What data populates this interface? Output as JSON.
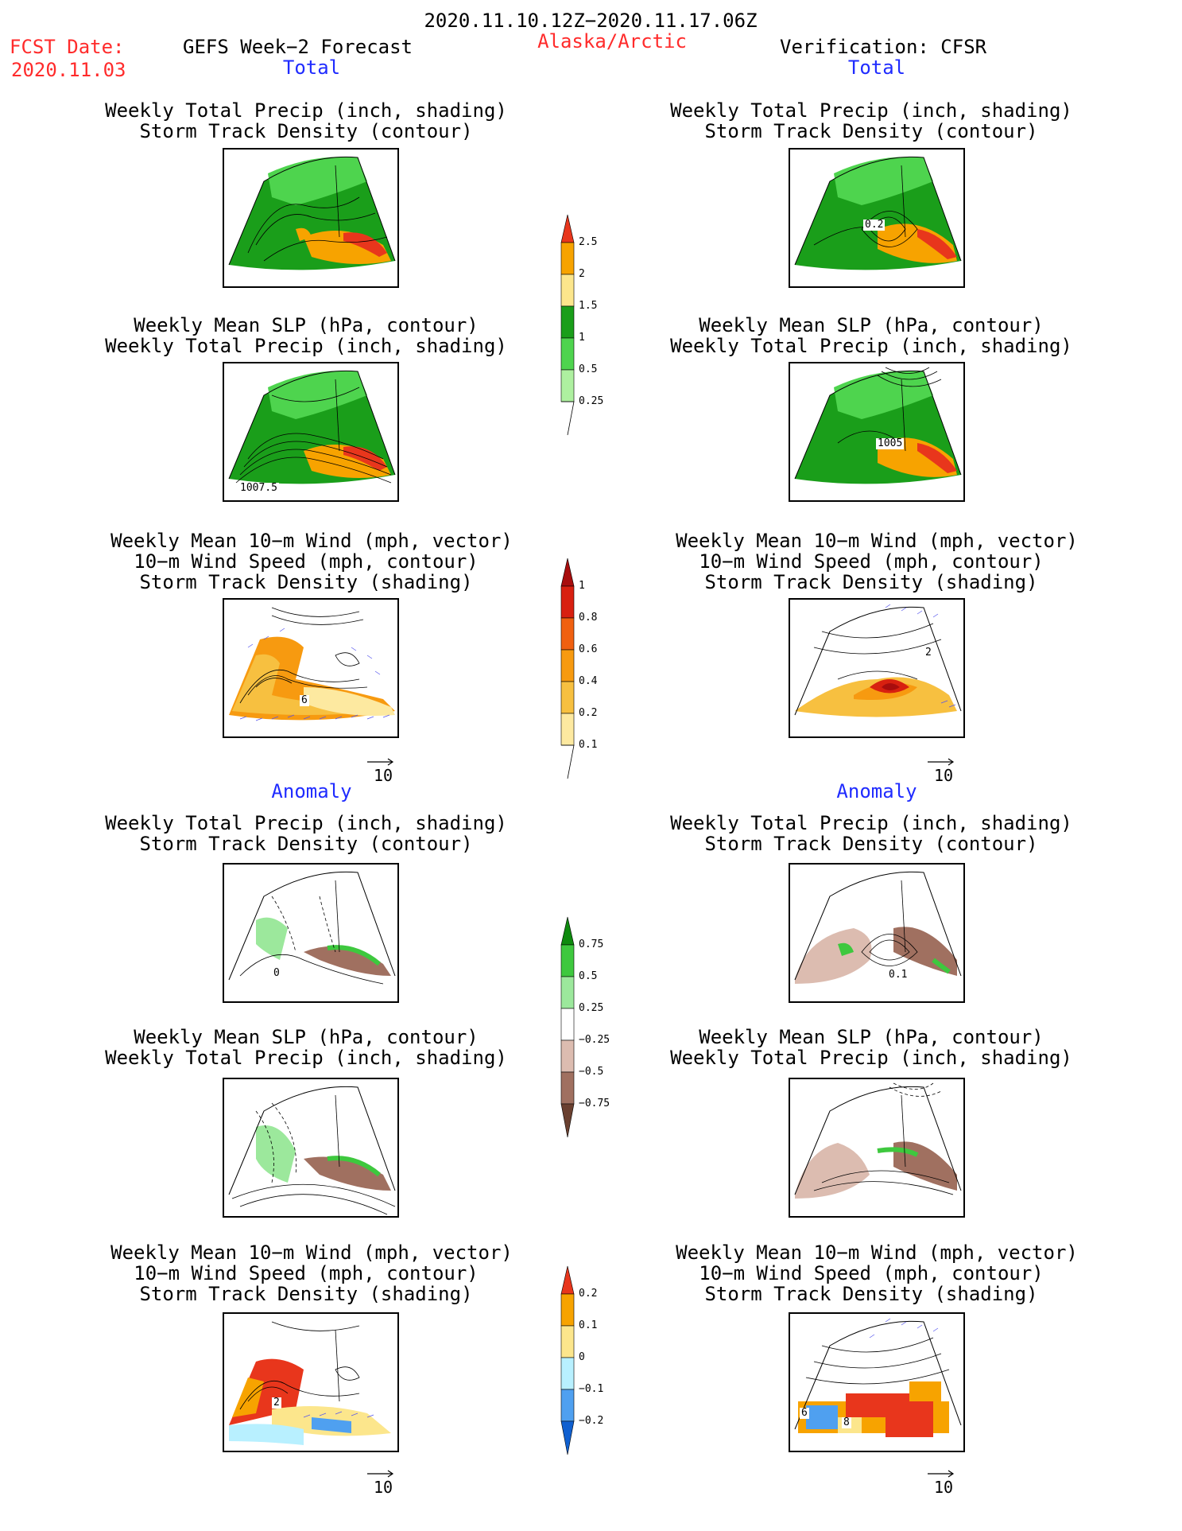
{
  "header": {
    "period": "2020.11.10.12Z−2020.11.17.06Z",
    "fcst_label": "FCST Date:",
    "fcst_date": "2020.11.03",
    "forecast_title": "GEFS Week−2 Forecast",
    "region": "Alaska/Arctic",
    "verification": "Verification: CFSR"
  },
  "sections": {
    "total": "Total",
    "anomaly": "Anomaly"
  },
  "titles": {
    "precip_track": [
      "Weekly Total Precip (inch, shading)",
      "Storm Track Density (contour)"
    ],
    "slp_precip": [
      "Weekly Mean SLP (hPa, contour)",
      "Weekly Total Precip (inch, shading)"
    ],
    "wind_track": [
      "Weekly Mean 10−m Wind (mph, vector)",
      "10−m Wind Speed (mph, contour)",
      "Storm Track Density (shading)"
    ]
  },
  "panel_labels": {
    "fc_total_precip": "",
    "obs_total_precip": "0.2",
    "fc_total_slp": "1007.5",
    "obs_total_slp": "1005",
    "fc_total_wind": "6",
    "obs_total_wind": "2",
    "fc_anom_precip": "0",
    "obs_anom_precip": "0.1",
    "fc_anom_wind": "2",
    "obs_anom_wind": "6",
    "obs_anom_wind2": "8"
  },
  "vector_ref": "10",
  "colorbars": {
    "precip": {
      "labels": [
        "2.5",
        "2",
        "1.5",
        "1",
        "0.5",
        "0.25"
      ],
      "colors": [
        "#e8361c",
        "#f7a300",
        "#fce68c",
        "#1a9e1a",
        "#4ed44e",
        "#aef0a0"
      ]
    },
    "track_total": {
      "labels": [
        "1",
        "0.8",
        "0.6",
        "0.4",
        "0.2",
        "0.1"
      ],
      "colors": [
        "#a80d0d",
        "#d82010",
        "#f06010",
        "#f79a10",
        "#f7c040",
        "#fde9a0",
        "#fffad0"
      ]
    },
    "anom_precip": {
      "labels": [
        "0.75",
        "0.5",
        "0.25",
        "−0.25",
        "−0.5",
        "−0.75"
      ],
      "colors": [
        "#0e8a0e",
        "#3ec83e",
        "#9ce89c",
        "#ffffff",
        "#dcbcb0",
        "#a07060",
        "#6a4030"
      ]
    },
    "anom_track": {
      "labels": [
        "0.2",
        "0.1",
        "0",
        "−0.1",
        "−0.2"
      ],
      "colors": [
        "#e8361c",
        "#f7a300",
        "#fce68c",
        "#b8f0ff",
        "#4fa0f0",
        "#1060d0"
      ]
    }
  }
}
